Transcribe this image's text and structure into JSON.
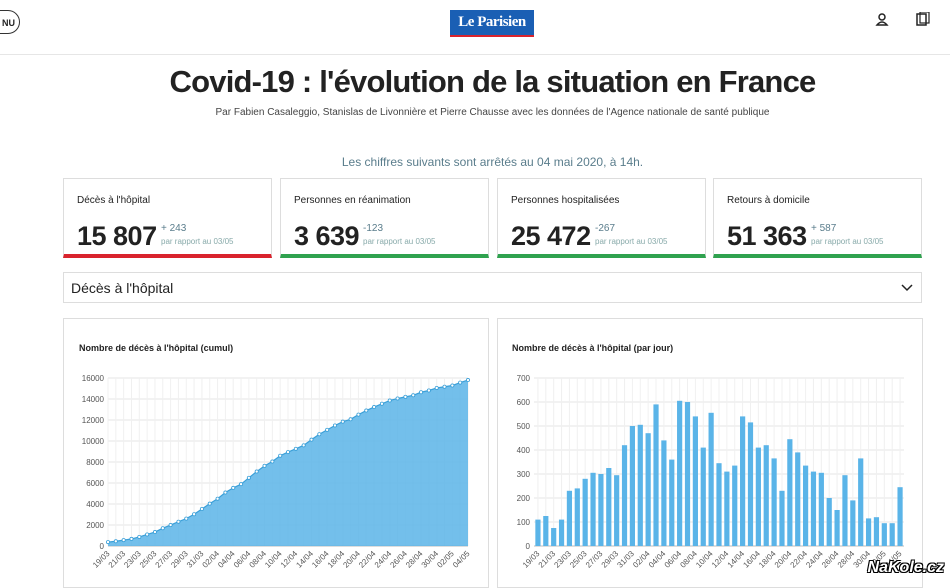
{
  "header": {
    "menu": "NU",
    "logo": "Le Parisien"
  },
  "title": "Covid-19 : l'évolution de la situation en France",
  "byline": "Par Fabien Casaleggio, Stanislas de Livonnière et Pierre Chausse avec les données de l'Agence nationale de santé publique",
  "notice": "Les chiffres suivants sont arrêtés au 04 mai 2020, à 14h.",
  "cards": [
    {
      "label": "Décès à l'hôpital",
      "value": "15 807",
      "delta": "+ 243",
      "note": "par rapport au 03/05",
      "color": "#d9232d"
    },
    {
      "label": "Personnes en réanimation",
      "value": "3 639",
      "delta": "-123",
      "note": "par rapport au 03/05",
      "color": "#2fa24f"
    },
    {
      "label": "Personnes hospitalisées",
      "value": "25 472",
      "delta": "-267",
      "note": "par rapport au 03/05",
      "color": "#2fa24f"
    },
    {
      "label": "Retours à domicile",
      "value": "51 363",
      "delta": "+ 587",
      "note": "par rapport au 03/05",
      "color": "#2fa24f"
    }
  ],
  "dropdown": "Décès à l'hôpital",
  "watermark": "NaKole.cz",
  "chart_data": [
    {
      "type": "area",
      "title": "Nombre de décès à l'hôpital (cumul)",
      "color": "#5ab4e8",
      "categories": [
        "19/03",
        null,
        "21/03",
        null,
        "23/03",
        null,
        "25/03",
        null,
        "27/03",
        null,
        "29/03",
        null,
        "31/03",
        null,
        "02/04",
        null,
        "04/04",
        null,
        "06/04",
        null,
        "08/04",
        null,
        "10/04",
        null,
        "12/04",
        null,
        "14/04",
        null,
        "16/04",
        null,
        "18/04",
        null,
        "20/04",
        null,
        "22/04",
        null,
        "24/04",
        null,
        "26/04",
        null,
        "28/04",
        null,
        "30/04",
        null,
        "02/05",
        null,
        "04/05"
      ],
      "values": [
        372,
        450,
        562,
        674,
        860,
        1100,
        1331,
        1696,
        1995,
        2314,
        2606,
        3024,
        3523,
        4032,
        4503,
        5091,
        5532,
        5889,
        6494,
        7091,
        7632,
        8044,
        8598,
        8943,
        9253,
        9588,
        10129,
        10643,
        11060,
        11478,
        11842,
        12069,
        12513,
        12900,
        13236,
        13547,
        13852,
        14050,
        14202,
        14354,
        14643,
        14810,
        15053,
        15166,
        15284,
        15564,
        15807
      ],
      "ylim": [
        0,
        16000
      ],
      "yticks": [
        0,
        2000,
        4000,
        6000,
        8000,
        10000,
        12000,
        14000,
        16000
      ],
      "grid": true
    },
    {
      "type": "bar",
      "title": "Nombre de décès à l'hôpital (par jour)",
      "color": "#5ab4e8",
      "categories": [
        "19/03",
        null,
        "21/03",
        null,
        "23/03",
        null,
        "25/03",
        null,
        "27/03",
        null,
        "29/03",
        null,
        "31/03",
        null,
        "02/04",
        null,
        "04/04",
        null,
        "06/04",
        null,
        "08/04",
        null,
        "10/04",
        null,
        "12/04",
        null,
        "14/04",
        null,
        "16/04",
        null,
        "18/04",
        null,
        "20/04",
        null,
        "22/04",
        null,
        "24/04",
        null,
        "26/04",
        null,
        "28/04",
        null,
        "30/04",
        null,
        "02/05",
        null,
        "04/05"
      ],
      "values": [
        110,
        125,
        75,
        110,
        230,
        240,
        280,
        305,
        300,
        325,
        295,
        420,
        500,
        505,
        470,
        590,
        440,
        360,
        605,
        600,
        540,
        410,
        555,
        345,
        310,
        335,
        540,
        515,
        410,
        420,
        365,
        230,
        445,
        390,
        335,
        310,
        305,
        200,
        150,
        295,
        190,
        365,
        115,
        120,
        95,
        95,
        245
      ],
      "ylim": [
        0,
        700
      ],
      "yticks": [
        0,
        100,
        200,
        300,
        400,
        500,
        600,
        700
      ],
      "grid": true
    }
  ]
}
